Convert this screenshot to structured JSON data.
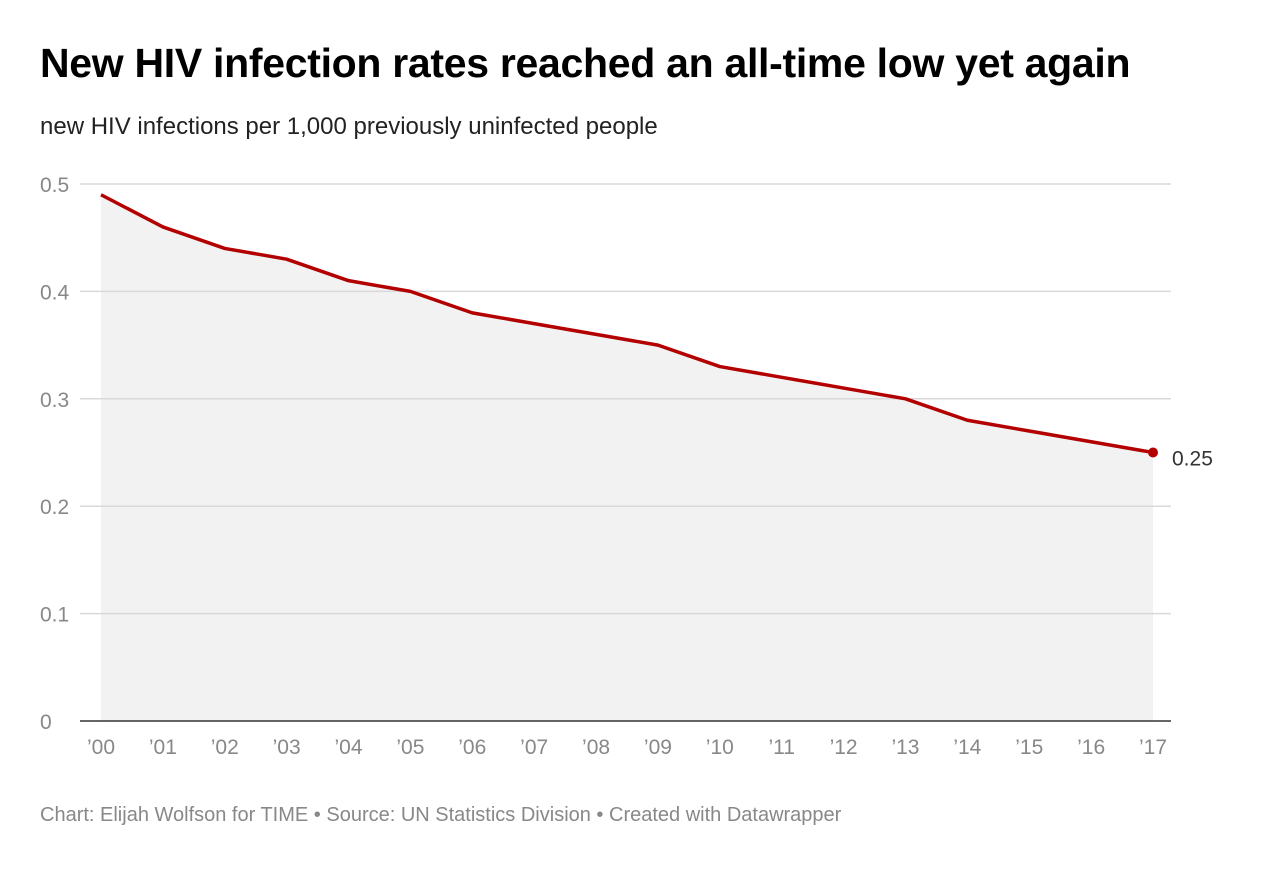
{
  "title": "New HIV infection rates reached an all-time low yet again",
  "subtitle": "new HIV infections per 1,000 previously uninfected people",
  "footer": "Chart: Elijah Wolfson for TIME • Source: UN Statistics Division • Created with Datawrapper",
  "chart_data": {
    "type": "area",
    "title": "New HIV infection rates reached an all-time low yet again",
    "subtitle": "new HIV infections per 1,000 previously uninfected people",
    "categories": [
      "’00",
      "’01",
      "’02",
      "’03",
      "’04",
      "’05",
      "’06",
      "’07",
      "’08",
      "’09",
      "’10",
      "’11",
      "’12",
      "’13",
      "’14",
      "’15",
      "’16",
      "’17"
    ],
    "values": [
      0.49,
      0.46,
      0.44,
      0.43,
      0.41,
      0.4,
      0.38,
      0.37,
      0.36,
      0.35,
      0.33,
      0.32,
      0.31,
      0.3,
      0.28,
      0.27,
      0.26,
      0.25
    ],
    "yticks": [
      "0",
      "0.1",
      "0.2",
      "0.3",
      "0.4",
      "0.5"
    ],
    "ylim": [
      0,
      0.5
    ],
    "grid": true,
    "end_label": "0.25",
    "colors": {
      "line": "#b30000",
      "area": "#f2f2f2",
      "grid": "#d9d9d9"
    }
  }
}
